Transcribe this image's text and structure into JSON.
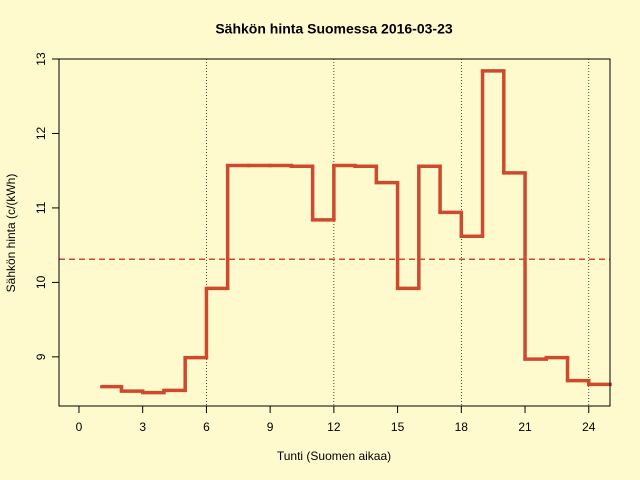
{
  "chart_data": {
    "type": "step",
    "title": "Sähkön hinta Suomessa 2016-03-23",
    "x_label": "Tunti (Suomen aikaa)",
    "y_label": "Sähkön hinta (c/(kWh)",
    "x": [
      1,
      2,
      3,
      4,
      5,
      6,
      7,
      8,
      9,
      10,
      11,
      12,
      13,
      14,
      15,
      16,
      17,
      18,
      19,
      20,
      21,
      22,
      23,
      24
    ],
    "values": [
      8.6,
      8.54,
      8.52,
      8.55,
      8.99,
      9.92,
      11.57,
      11.57,
      11.57,
      11.56,
      10.84,
      11.57,
      11.56,
      11.34,
      9.92,
      11.56,
      10.94,
      10.62,
      12.84,
      11.47,
      8.97,
      8.99,
      8.68,
      8.63
    ],
    "color": "#cd4a2e",
    "reference_line": 10.31,
    "vlines": [
      6,
      12,
      18,
      24
    ],
    "xlim": [
      -0.94,
      25
    ],
    "ylim": [
      8.34,
      13.0
    ],
    "xticks": [
      0,
      3,
      6,
      9,
      12,
      15,
      18,
      21,
      24
    ],
    "yticks": [
      9,
      10,
      11,
      12,
      13
    ]
  }
}
